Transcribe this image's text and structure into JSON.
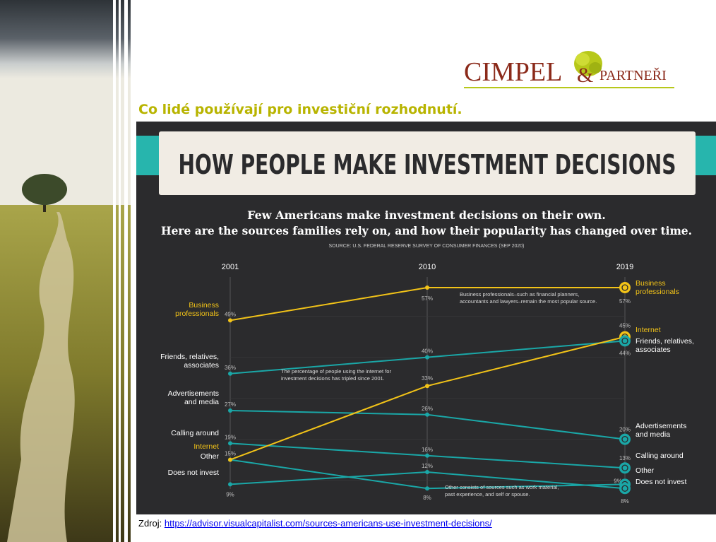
{
  "heading": "Co lidé používají pro investiční rozhodnutí.",
  "logo": {
    "main": "CIMPEL",
    "ampersand": "&",
    "secondary": "PARTNEŘI"
  },
  "footer": {
    "prefix": "Zdroj:",
    "link": "https://advisor.visualcapitalist.com/sources-americans-use-investment-decisions/"
  },
  "colors": {
    "yellow": "#f2c318",
    "teal": "#1aa7a7",
    "banner_accent": "#27b5ad",
    "background": "#2b2b2d",
    "heading": "#b8b400"
  },
  "chart_data": {
    "type": "line",
    "title": "HOW PEOPLE MAKE INVESTMENT DECISIONS",
    "subtitle_line1": "Few Americans make investment decisions on their own.",
    "subtitle_line2": "Here are the sources families rely on, and how their popularity has changed over time.",
    "source": "SOURCE: U.S. FEDERAL RESERVE SURVEY OF CONSUMER FINANCES (SEP 2020)",
    "categories": [
      "2001",
      "2010",
      "2019"
    ],
    "ylim": [
      0,
      60
    ],
    "series": [
      {
        "id": "business",
        "color": "yellow",
        "left_label": [
          "Business",
          "professionals"
        ],
        "right_label": [
          "Business",
          "professionals"
        ],
        "icon": "person-icon",
        "values": [
          49,
          57,
          57
        ],
        "labels": [
          "49%",
          "57%",
          "57%"
        ]
      },
      {
        "id": "internet",
        "color": "yellow",
        "left_label": [
          "Internet"
        ],
        "right_label": [
          "Internet"
        ],
        "icon": "globe-icon",
        "values": [
          15,
          33,
          45
        ],
        "labels": [
          "",
          "33%",
          "45%"
        ]
      },
      {
        "id": "friends",
        "color": "teal",
        "left_label": [
          "Friends, relatives,",
          "associates"
        ],
        "right_label": [
          "Friends, relatives,",
          "associates"
        ],
        "icon": "people-icon",
        "values": [
          36,
          40,
          44
        ],
        "labels": [
          "36%",
          "40%",
          "44%"
        ]
      },
      {
        "id": "advertisements",
        "color": "teal",
        "left_label": [
          "Advertisements",
          "and media"
        ],
        "right_label": [
          "Advertisements",
          "and media"
        ],
        "icon": "megaphone-icon",
        "values": [
          27,
          26,
          20
        ],
        "labels": [
          "27%",
          "26%",
          "20%"
        ]
      },
      {
        "id": "calling",
        "color": "teal",
        "left_label": [
          "Calling around"
        ],
        "right_label": [
          "Calling around"
        ],
        "icon": "phone-icon",
        "values": [
          19,
          16,
          13
        ],
        "labels": [
          "19%",
          "16%",
          "13%"
        ]
      },
      {
        "id": "other",
        "color": "teal",
        "left_label": [
          "Other"
        ],
        "right_label": [
          "Other"
        ],
        "icon": "dots-icon",
        "values": [
          15,
          8,
          9
        ],
        "labels": [
          "15%",
          "8%",
          "9%"
        ]
      },
      {
        "id": "not_invest",
        "color": "teal",
        "left_label": [
          "Does not invest"
        ],
        "right_label": [
          "Does not invest"
        ],
        "icon": "cross-icon",
        "values": [
          9,
          12,
          8
        ],
        "labels": [
          "9%",
          "12%",
          "8%"
        ]
      }
    ],
    "annotations": [
      [
        "Business professionals–such as financial planners,",
        "accountants and lawyers–remain the most popular source."
      ],
      [
        "The percentage of people using the internet for",
        "investment decisions has tripled since 2001."
      ],
      [
        "Other consists of sources such as work material,",
        "past experience, and self or spouse."
      ]
    ]
  }
}
